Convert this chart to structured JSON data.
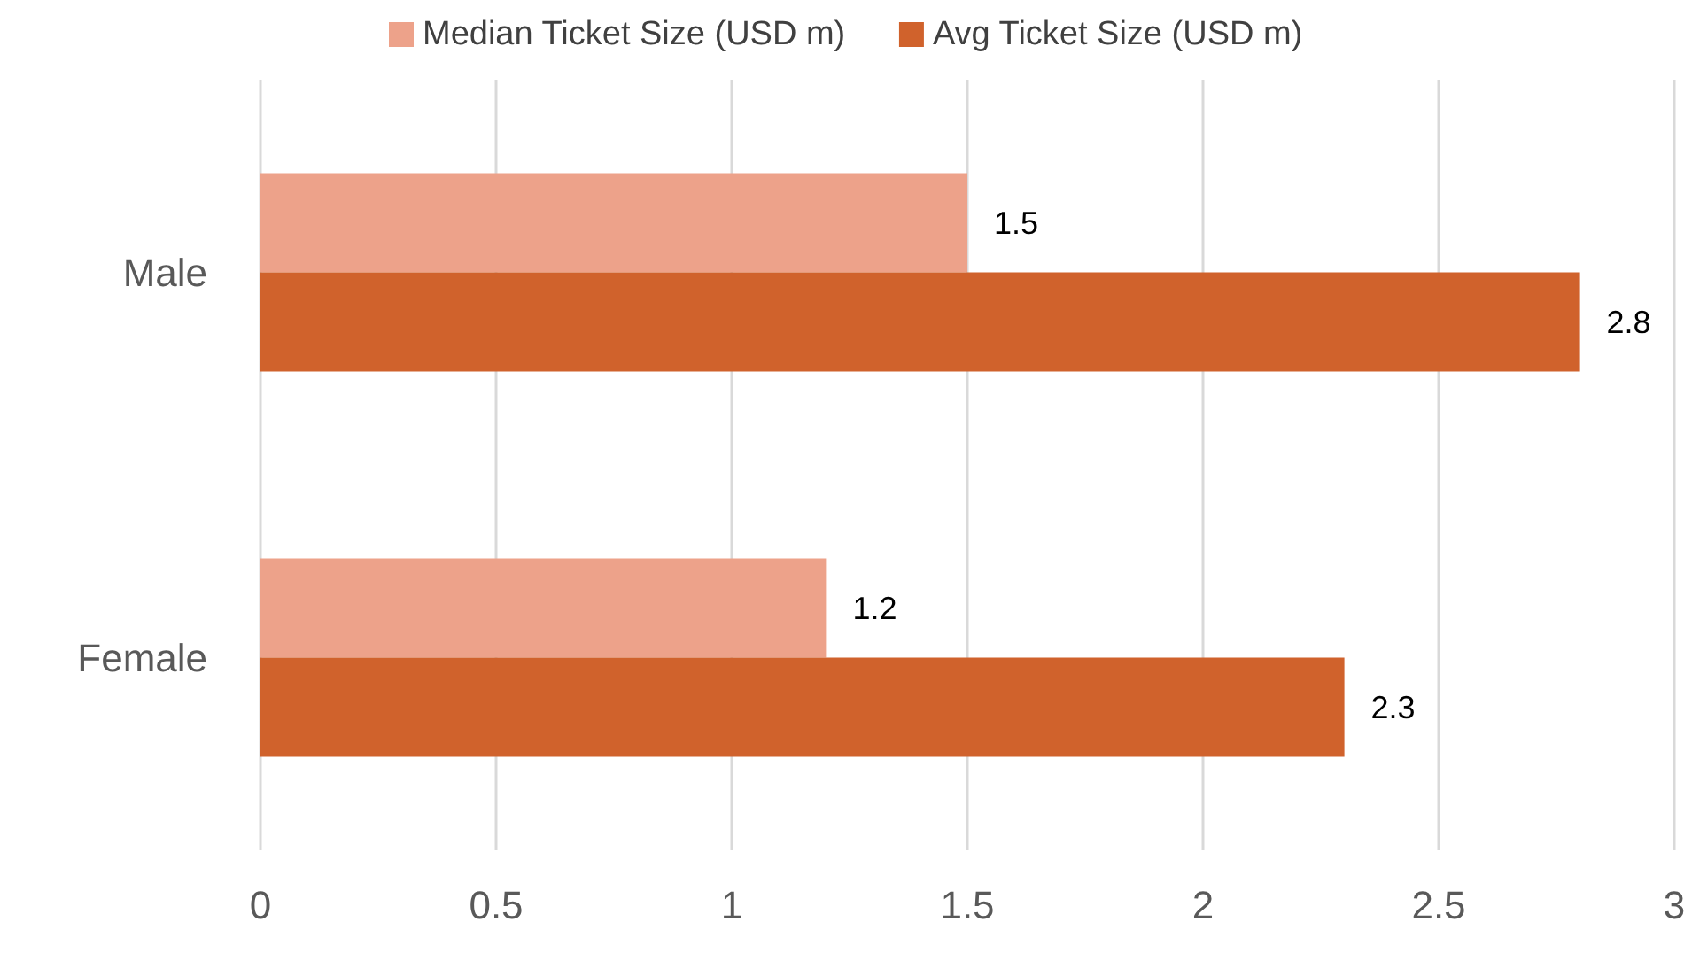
{
  "chart_data": {
    "type": "bar",
    "orientation": "horizontal",
    "categories": [
      "Male",
      "Female"
    ],
    "series": [
      {
        "name": "Median Ticket Size (USD m)",
        "color": "#eda28a",
        "values": [
          1.5,
          1.2
        ]
      },
      {
        "name": "Avg Ticket Size (USD m)",
        "color": "#d0622c",
        "values": [
          2.8,
          2.3
        ]
      }
    ],
    "xlim": [
      0,
      3
    ],
    "xticks": [
      0,
      0.5,
      1,
      1.5,
      2,
      2.5,
      3
    ],
    "grid": "x",
    "legend": "top",
    "data_labels": true
  }
}
